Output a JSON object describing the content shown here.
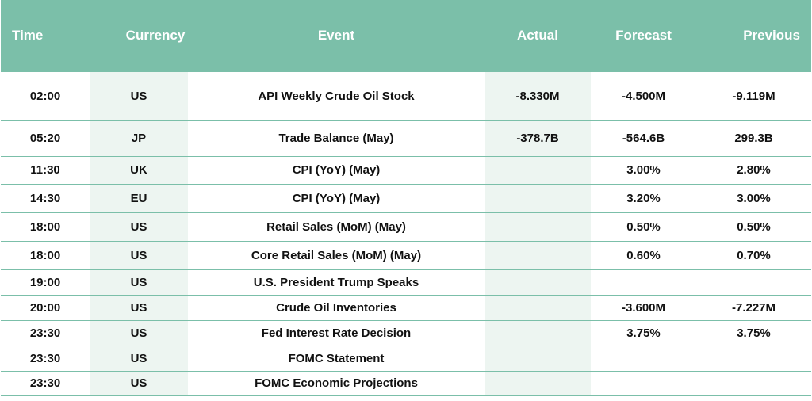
{
  "header": {
    "time": "Time",
    "currency": "Currency",
    "event": "Event",
    "actual": "Actual",
    "forecast": "Forecast",
    "previous": "Previous"
  },
  "rows": [
    {
      "time": "02:00",
      "currency": "US",
      "event": "API Weekly Crude Oil Stock",
      "actual": "-8.330M",
      "forecast": "-4.500M",
      "previous": "-9.119M"
    },
    {
      "time": "05:20",
      "currency": "JP",
      "event": "Trade Balance (May)",
      "actual": "-378.7B",
      "forecast": "-564.6B",
      "previous": "299.3B"
    },
    {
      "time": "11:30",
      "currency": "UK",
      "event": "CPI (YoY) (May)",
      "actual": "",
      "forecast": "3.00%",
      "previous": "2.80%"
    },
    {
      "time": "14:30",
      "currency": "EU",
      "event": "CPI (YoY) (May)",
      "actual": "",
      "forecast": "3.20%",
      "previous": "3.00%"
    },
    {
      "time": "18:00",
      "currency": "US",
      "event": "Retail Sales (MoM) (May)",
      "actual": "",
      "forecast": "0.50%",
      "previous": "0.50%"
    },
    {
      "time": "18:00",
      "currency": "US",
      "event": "Core Retail Sales (MoM) (May)",
      "actual": "",
      "forecast": "0.60%",
      "previous": "0.70%"
    },
    {
      "time": "19:00",
      "currency": "US",
      "event": "U.S. President Trump Speaks",
      "actual": "",
      "forecast": "",
      "previous": ""
    },
    {
      "time": "20:00",
      "currency": "US",
      "event": "Crude Oil Inventories",
      "actual": "",
      "forecast": "-3.600M",
      "previous": "-7.227M"
    },
    {
      "time": "23:30",
      "currency": "US",
      "event": "Fed Interest Rate Decision",
      "actual": "",
      "forecast": "3.75%",
      "previous": "3.75%"
    },
    {
      "time": "23:30",
      "currency": "US",
      "event": "FOMC Statement",
      "actual": "",
      "forecast": "",
      "previous": ""
    },
    {
      "time": "23:30",
      "currency": "US",
      "event": "FOMC Economic Projections",
      "actual": "",
      "forecast": "",
      "previous": ""
    }
  ],
  "colors": {
    "header_bg": "#7bbfa9",
    "header_text": "#ffffff",
    "shade": "#edf5f1",
    "border": "#7bbfa9"
  }
}
